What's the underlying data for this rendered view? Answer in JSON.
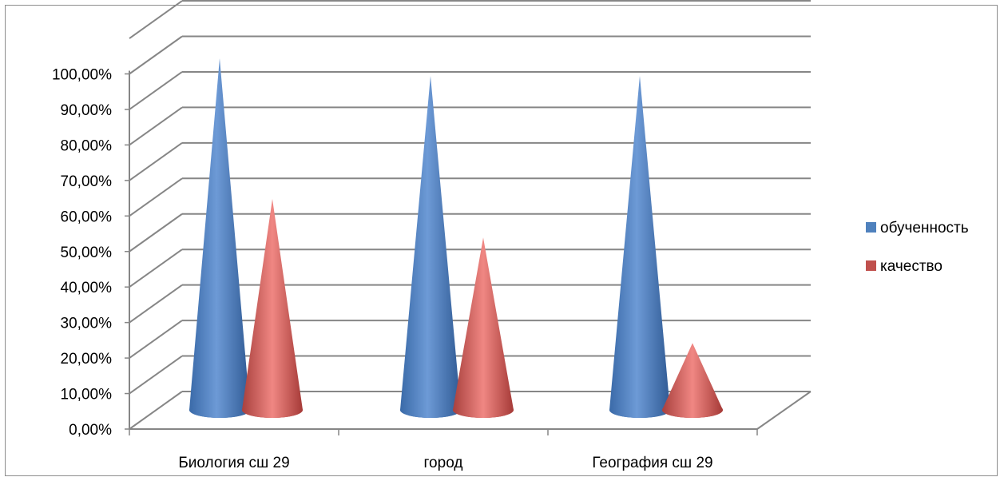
{
  "chart_data": {
    "type": "bar",
    "style": "3d-cone",
    "categories": [
      "Биология сш 29",
      "город",
      "География сш 29"
    ],
    "series": [
      {
        "name": "обученность",
        "color": "#4f81bd",
        "values": [
          100,
          95,
          95
        ]
      },
      {
        "name": "качество",
        "color": "#c0504d",
        "values": [
          60,
          49,
          19
        ]
      }
    ],
    "y_ticks": [
      "0,00%",
      "10,00%",
      "20,00%",
      "30,00%",
      "40,00%",
      "50,00%",
      "60,00%",
      "70,00%",
      "80,00%",
      "90,00%",
      "100,00%"
    ],
    "ylim": [
      0,
      100
    ],
    "grid": true,
    "legend": "right"
  }
}
